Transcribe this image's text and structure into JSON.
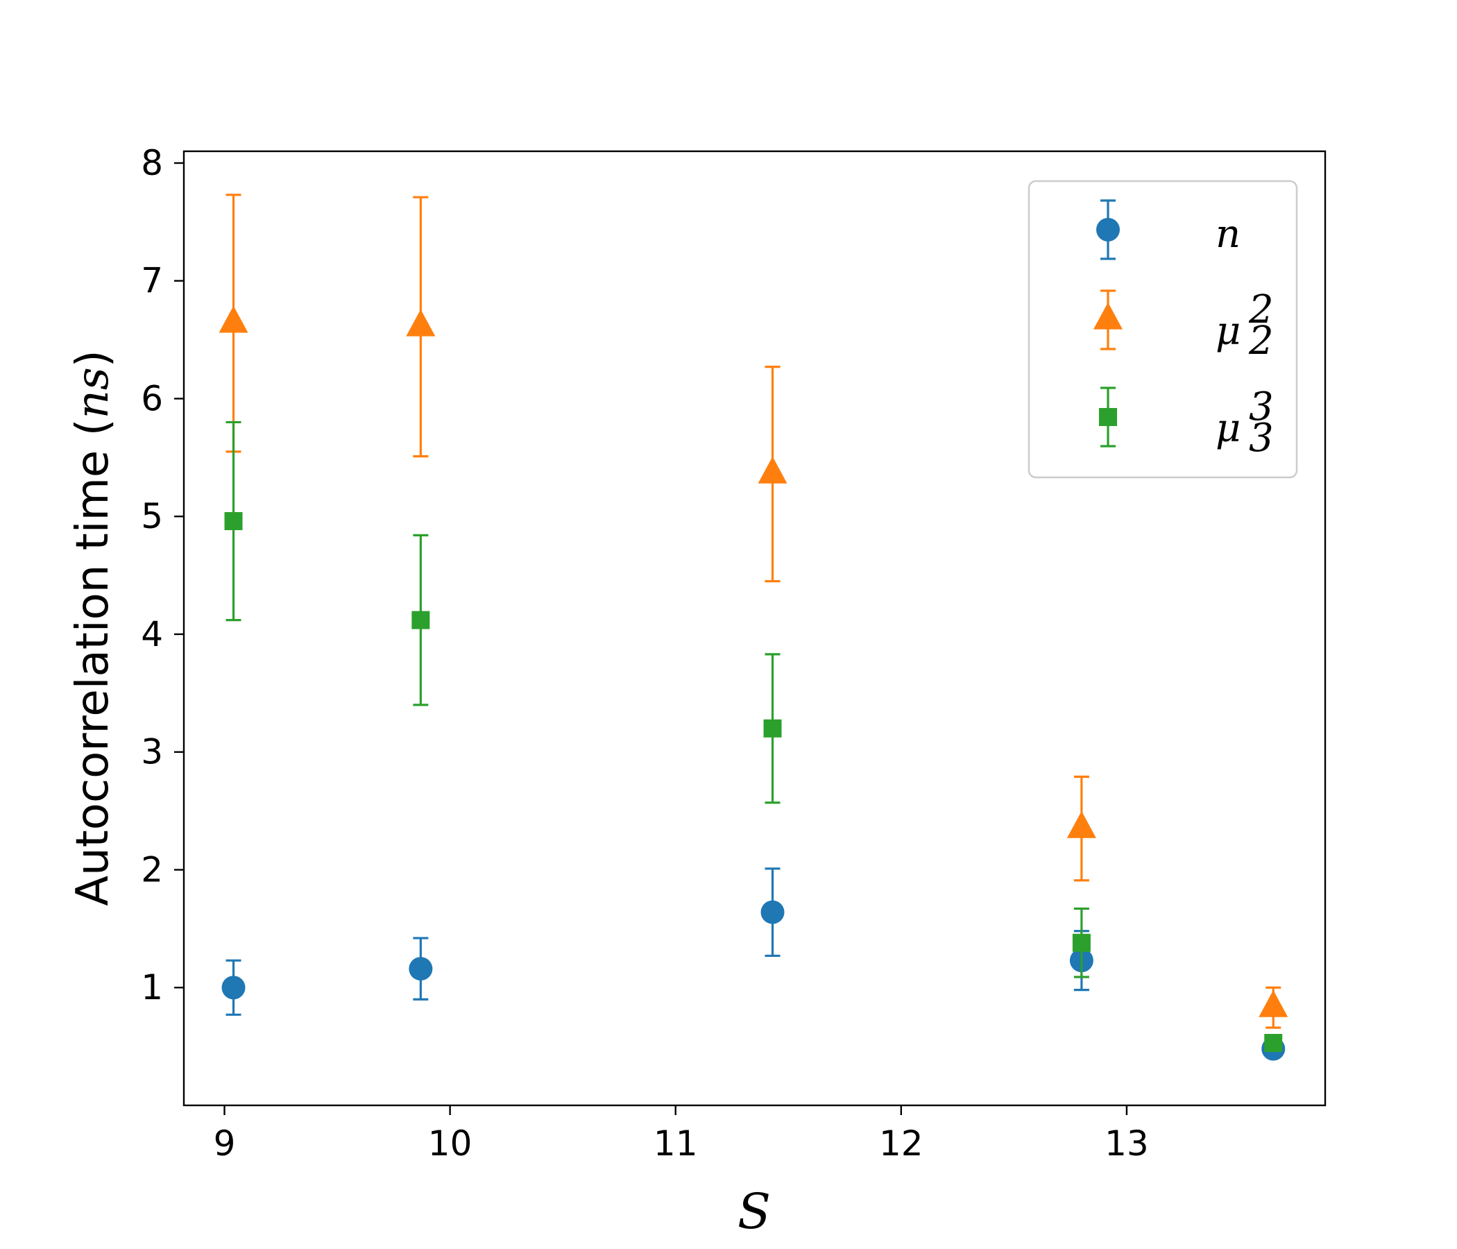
{
  "chart_data": {
    "type": "scatter",
    "title": "",
    "xlabel": "S",
    "ylabel": "Autocorrelation time (ns)",
    "ylabel_prefix": "Autocorrelation time (",
    "ylabel_unit": "ns",
    "ylabel_suffix": ")",
    "xlim": [
      8.82,
      13.88
    ],
    "ylim": [
      0.0,
      8.1
    ],
    "xticks": [
      9,
      10,
      11,
      12,
      13
    ],
    "yticks": [
      1,
      2,
      3,
      4,
      5,
      6,
      7,
      8
    ],
    "grid": false,
    "legend_position": "top-right",
    "series": [
      {
        "name": "n",
        "legend_base": "n",
        "legend_sup": "",
        "legend_sub": "",
        "color": "#1f77b4",
        "marker": "circle",
        "x": [
          9.04,
          9.87,
          11.43,
          12.8,
          13.65
        ],
        "y": [
          1.0,
          1.16,
          1.64,
          1.23,
          0.48
        ],
        "yerr": [
          0.23,
          0.26,
          0.37,
          0.25,
          0.04
        ]
      },
      {
        "name": "mu_2^2",
        "legend_base": "μ",
        "legend_sup": "2",
        "legend_sub": "2",
        "color": "#ff7f0e",
        "marker": "triangle",
        "x": [
          9.04,
          9.87,
          11.43,
          12.8,
          13.65
        ],
        "y": [
          6.64,
          6.61,
          5.36,
          2.35,
          0.83
        ],
        "yerr": [
          1.09,
          1.1,
          0.91,
          0.44,
          0.17
        ]
      },
      {
        "name": "mu_3^3",
        "legend_base": "μ",
        "legend_sup": "3",
        "legend_sub": "3",
        "color": "#2ca02c",
        "marker": "square",
        "x": [
          9.04,
          9.87,
          11.43,
          12.8,
          13.65
        ],
        "y": [
          4.96,
          4.12,
          3.2,
          1.38,
          0.53
        ],
        "yerr": [
          0.84,
          0.72,
          0.63,
          0.29,
          0.06
        ]
      }
    ]
  }
}
